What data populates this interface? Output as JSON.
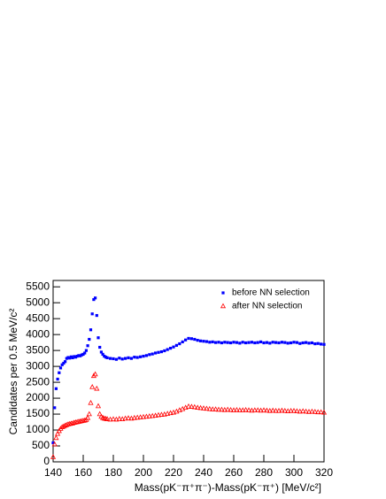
{
  "chart_data": {
    "type": "scatter",
    "x_label": "Mass(pK⁻π⁺π⁻)-Mass(pK⁻π⁺) [MeV/c²]",
    "y_label": "Candidates per 0.5 MeV/c²",
    "xlim": [
      140,
      320
    ],
    "ylim": [
      0,
      5700
    ],
    "xticks": [
      140,
      160,
      180,
      200,
      220,
      240,
      260,
      280,
      300,
      320
    ],
    "yticks": [
      0,
      500,
      1000,
      1500,
      2000,
      2500,
      3000,
      3500,
      4000,
      4500,
      5000,
      5500
    ],
    "legend": "top-right",
    "x": [
      140,
      141,
      142,
      143,
      144,
      145,
      146,
      147,
      148,
      149,
      150,
      151,
      152,
      153,
      154,
      155,
      156,
      157,
      158,
      159,
      160,
      161,
      162,
      163,
      164,
      165,
      166,
      167,
      168,
      169,
      170,
      171,
      172,
      173,
      174,
      175,
      176,
      178,
      180,
      182,
      184,
      186,
      188,
      190,
      192,
      194,
      196,
      198,
      200,
      202,
      204,
      206,
      208,
      210,
      212,
      214,
      216,
      218,
      220,
      222,
      224,
      226,
      228,
      230,
      232,
      234,
      236,
      238,
      240,
      242,
      244,
      246,
      248,
      250,
      252,
      254,
      256,
      258,
      260,
      262,
      264,
      266,
      268,
      270,
      272,
      274,
      276,
      278,
      280,
      282,
      284,
      286,
      288,
      290,
      292,
      294,
      296,
      298,
      300,
      302,
      304,
      306,
      308,
      310,
      312,
      314,
      316,
      318,
      320
    ],
    "series": [
      {
        "name": "before NN selection",
        "color": "#0000ff",
        "marker": "square",
        "values": [
          600,
          1700,
          2300,
          2600,
          2800,
          2950,
          3050,
          3100,
          3150,
          3250,
          3280,
          3260,
          3300,
          3270,
          3310,
          3290,
          3320,
          3340,
          3330,
          3360,
          3380,
          3420,
          3500,
          3650,
          3850,
          4150,
          4650,
          5100,
          5150,
          4600,
          3900,
          3600,
          3450,
          3380,
          3320,
          3290,
          3270,
          3250,
          3240,
          3220,
          3260,
          3230,
          3250,
          3270,
          3250,
          3290,
          3280,
          3300,
          3320,
          3340,
          3370,
          3390,
          3420,
          3440,
          3460,
          3490,
          3530,
          3570,
          3610,
          3660,
          3710,
          3770,
          3830,
          3880,
          3870,
          3850,
          3820,
          3800,
          3790,
          3780,
          3760,
          3770,
          3750,
          3760,
          3740,
          3760,
          3750,
          3740,
          3760,
          3750,
          3730,
          3760,
          3740,
          3750,
          3760,
          3740,
          3750,
          3770,
          3740,
          3750,
          3730,
          3760,
          3750,
          3740,
          3760,
          3750,
          3730,
          3740,
          3760,
          3750,
          3720,
          3740,
          3750,
          3730,
          3740,
          3710,
          3720,
          3700,
          3690
        ]
      },
      {
        "name": "after NN selection",
        "color": "#ff0000",
        "marker": "open-triangle",
        "values": [
          150,
          550,
          750,
          880,
          970,
          1040,
          1090,
          1110,
          1140,
          1160,
          1180,
          1190,
          1200,
          1210,
          1230,
          1240,
          1250,
          1260,
          1270,
          1280,
          1290,
          1300,
          1320,
          1380,
          1500,
          1850,
          2350,
          2700,
          2750,
          2300,
          1750,
          1500,
          1420,
          1380,
          1360,
          1350,
          1340,
          1330,
          1340,
          1330,
          1350,
          1340,
          1360,
          1370,
          1360,
          1380,
          1390,
          1400,
          1410,
          1420,
          1430,
          1440,
          1450,
          1470,
          1480,
          1490,
          1510,
          1530,
          1550,
          1580,
          1620,
          1660,
          1700,
          1740,
          1730,
          1720,
          1700,
          1690,
          1680,
          1670,
          1660,
          1650,
          1650,
          1640,
          1640,
          1630,
          1640,
          1630,
          1620,
          1630,
          1620,
          1620,
          1630,
          1620,
          1610,
          1620,
          1620,
          1610,
          1620,
          1610,
          1600,
          1610,
          1600,
          1600,
          1610,
          1600,
          1590,
          1600,
          1600,
          1590,
          1580,
          1590,
          1580,
          1570,
          1580,
          1570,
          1560,
          1560,
          1550
        ]
      }
    ]
  }
}
